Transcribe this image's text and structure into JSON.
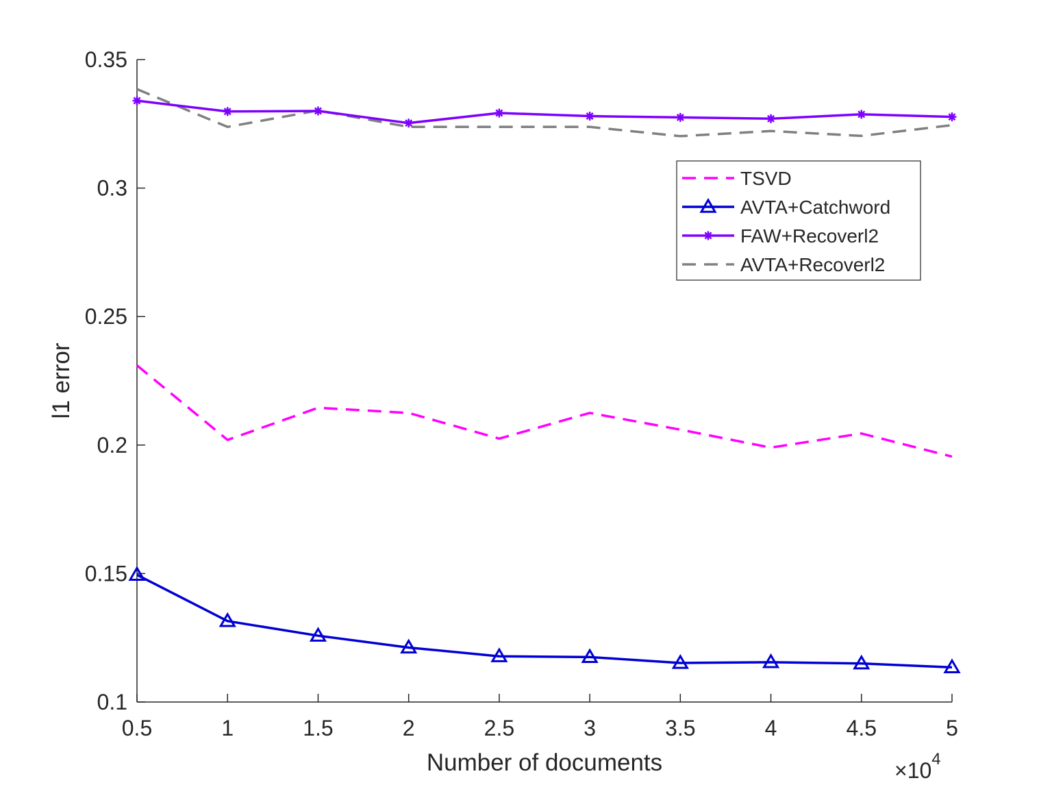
{
  "chart_data": {
    "type": "line",
    "title": "",
    "xlabel": "Number of documents",
    "ylabel": "l1 error",
    "x_multiplier_label": "×10",
    "x_multiplier_exponent": "4",
    "x": [
      0.5,
      1,
      1.5,
      2,
      2.5,
      3,
      3.5,
      4,
      4.5,
      5
    ],
    "xlim": [
      0.5,
      5
    ],
    "ylim": [
      0.1,
      0.35
    ],
    "x_ticks": [
      0.5,
      1,
      1.5,
      2,
      2.5,
      3,
      3.5,
      4,
      4.5,
      5
    ],
    "x_tick_labels": [
      "0.5",
      "1",
      "1.5",
      "2",
      "2.5",
      "3",
      "3.5",
      "4",
      "4.5",
      "5"
    ],
    "y_ticks": [
      0.1,
      0.15,
      0.2,
      0.25,
      0.3,
      0.35
    ],
    "y_tick_labels": [
      "0.1",
      "0.15",
      "0.2",
      "0.25",
      "0.3",
      "0.35"
    ],
    "grid": false,
    "legend_position": "top-right",
    "series": [
      {
        "name": "TSVD",
        "color": "#ff00ff",
        "line_style": "dashed",
        "marker": "none",
        "values": [
          0.231,
          0.202,
          0.2145,
          0.2125,
          0.2025,
          0.2125,
          0.206,
          0.199,
          0.2045,
          0.1955
        ]
      },
      {
        "name": "AVTA+Catchword",
        "color": "#0000d4",
        "line_style": "solid",
        "marker": "triangle",
        "values": [
          0.1495,
          0.1315,
          0.1258,
          0.1212,
          0.1178,
          0.1175,
          0.1152,
          0.1155,
          0.115,
          0.1135
        ]
      },
      {
        "name": "FAW+Recoverl2",
        "color": "#7e00ff",
        "line_style": "solid",
        "marker": "asterisk",
        "values": [
          0.334,
          0.3298,
          0.33,
          0.3253,
          0.3292,
          0.328,
          0.3275,
          0.327,
          0.3287,
          0.3277
        ]
      },
      {
        "name": "AVTA+Recoverl2",
        "color": "#808080",
        "line_style": "dashed",
        "marker": "none",
        "values": [
          0.3385,
          0.3238,
          0.3302,
          0.3238,
          0.3238,
          0.3238,
          0.3202,
          0.3222,
          0.3203,
          0.3245
        ]
      }
    ]
  }
}
